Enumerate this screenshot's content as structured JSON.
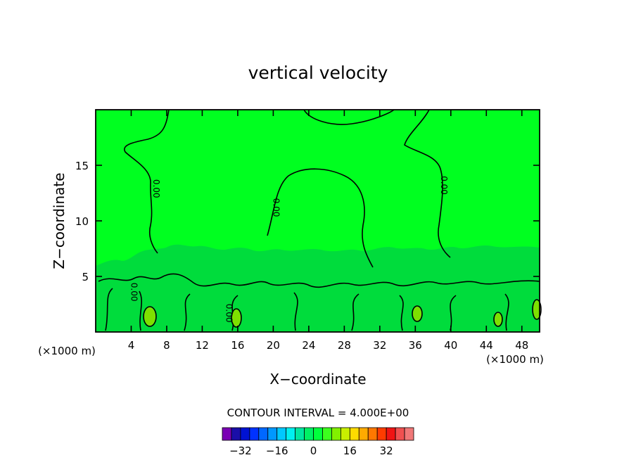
{
  "chart_data": {
    "type": "heatmap",
    "title": "vertical velocity",
    "xlabel": "X−coordinate",
    "ylabel": "Z−coordinate",
    "x_unit_left": "(×1000 m)",
    "x_unit_right": "(×1000 m)",
    "xlim": [
      0,
      50
    ],
    "ylim": [
      0,
      20
    ],
    "x_ticks": [
      4,
      8,
      12,
      16,
      20,
      24,
      28,
      32,
      36,
      40,
      44,
      48
    ],
    "x_tick_labels": [
      "4",
      "8",
      "12",
      "16",
      "20",
      "24",
      "28",
      "32",
      "36",
      "40",
      "44",
      "48"
    ],
    "y_ticks": [
      5,
      10,
      15
    ],
    "y_tick_labels": [
      "5",
      "10",
      "15"
    ],
    "contour_interval_text": "CONTOUR INTERVAL = 4.000E+00",
    "contour_labels": [
      {
        "text": "0.00",
        "x": 6.5,
        "z": 12.9
      },
      {
        "text": "0.00",
        "x": 20.0,
        "z": 11.2
      },
      {
        "text": "0.00",
        "x": 38.9,
        "z": 13.2
      },
      {
        "text": "0.00",
        "x": 4.0,
        "z": 3.6
      },
      {
        "text": "0.00",
        "x": 14.7,
        "z": 1.7
      }
    ],
    "colorbar": {
      "ticks": [
        -32,
        -16,
        0,
        16,
        32
      ],
      "tick_labels": [
        "−32",
        "−16",
        "0",
        "16",
        "32"
      ],
      "colors": [
        "#7a00b4",
        "#1a0ea8",
        "#0012d2",
        "#0032ff",
        "#0068ff",
        "#0098ff",
        "#00c8ff",
        "#00f0f0",
        "#00e6a0",
        "#00f064",
        "#00ff3c",
        "#3cff1e",
        "#82f000",
        "#c8f000",
        "#ffdc00",
        "#ffaa00",
        "#ff7800",
        "#ff3c00",
        "#f01414",
        "#f05050",
        "#f07878"
      ]
    },
    "background_color": "#00ff20",
    "lower_region_color": "#00dc3c",
    "updraft_color": "#7ee000"
  }
}
